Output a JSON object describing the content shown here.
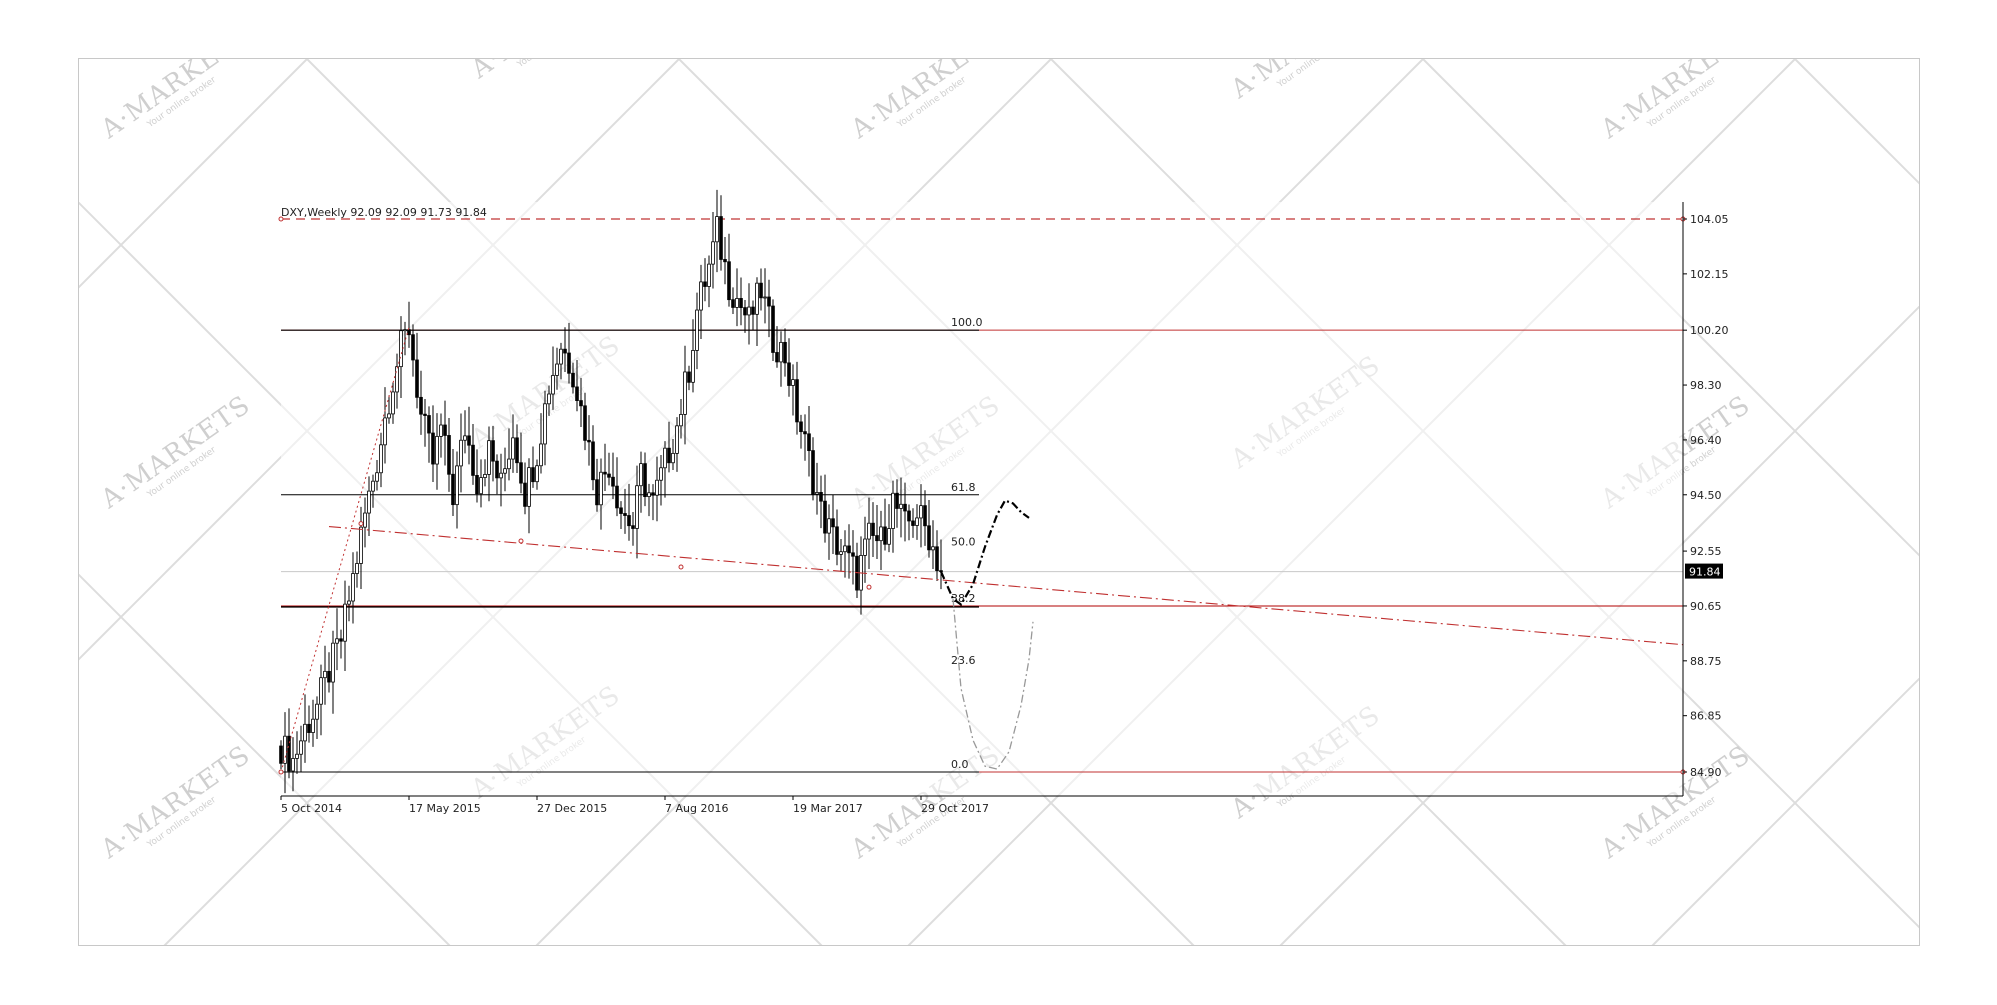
{
  "chart_data": {
    "type": "candlestick",
    "title": "DXY,Weekly  92.09 92.09 91.73 91.84",
    "symbol": "DXY,Weekly",
    "last_price": "91.84",
    "y_ticks": [
      "104.05",
      "102.15",
      "100.20",
      "98.30",
      "96.40",
      "94.50",
      "92.55",
      "90.65",
      "88.75",
      "86.85",
      "84.90"
    ],
    "y_tick_values": [
      104.05,
      102.15,
      100.2,
      98.3,
      96.4,
      94.5,
      92.55,
      90.65,
      88.75,
      86.85,
      84.9
    ],
    "ylim": [
      84.2,
      104.8
    ],
    "x_ticks": [
      "5 Oct 2014",
      "17 May 2015",
      "27 Dec 2015",
      "7 Aug 2016",
      "19 Mar 2017",
      "29 Oct 2017"
    ],
    "x_tick_index": [
      0,
      32,
      64,
      96,
      128,
      160
    ],
    "price_path": [
      [
        0,
        85.8
      ],
      [
        3,
        85.3
      ],
      [
        6,
        86.4
      ],
      [
        9,
        87.2
      ],
      [
        12,
        88.4
      ],
      [
        15,
        89.5
      ],
      [
        18,
        91.6
      ],
      [
        21,
        93.8
      ],
      [
        24,
        95.7
      ],
      [
        27,
        97.9
      ],
      [
        30,
        99.6
      ],
      [
        32,
        100.3
      ],
      [
        35,
        97.2
      ],
      [
        38,
        95.6
      ],
      [
        40,
        96.8
      ],
      [
        43,
        94.5
      ],
      [
        46,
        96.8
      ],
      [
        49,
        95.0
      ],
      [
        52,
        96.0
      ],
      [
        55,
        94.8
      ],
      [
        58,
        96.7
      ],
      [
        61,
        94.6
      ],
      [
        64,
        96.0
      ],
      [
        67,
        98.3
      ],
      [
        70,
        99.7
      ],
      [
        73,
        98.8
      ],
      [
        76,
        96.8
      ],
      [
        79,
        94.7
      ],
      [
        82,
        95.6
      ],
      [
        85,
        94.0
      ],
      [
        88,
        93.4
      ],
      [
        90,
        95.2
      ],
      [
        93,
        94.2
      ],
      [
        96,
        95.6
      ],
      [
        99,
        96.9
      ],
      [
        102,
        98.9
      ],
      [
        104,
        100.9
      ],
      [
        107,
        102.4
      ],
      [
        109,
        103.6
      ],
      [
        112,
        101.8
      ],
      [
        114,
        101.3
      ],
      [
        117,
        100.5
      ],
      [
        120,
        101.6
      ],
      [
        123,
        99.9
      ],
      [
        126,
        99.3
      ],
      [
        129,
        97.3
      ],
      [
        132,
        95.7
      ],
      [
        135,
        93.9
      ],
      [
        138,
        93.0
      ],
      [
        141,
        92.4
      ],
      [
        144,
        91.7
      ],
      [
        147,
        93.0
      ],
      [
        150,
        92.9
      ],
      [
        153,
        94.3
      ],
      [
        156,
        93.4
      ],
      [
        159,
        93.9
      ],
      [
        162,
        93.1
      ],
      [
        165,
        91.84
      ]
    ],
    "horizontal_levels": [
      104.05,
      100.2,
      94.5,
      90.65,
      84.9
    ],
    "fibonacci": [
      {
        "label": "100.0",
        "value": 100.2
      },
      {
        "label": "61.8",
        "value": 94.5
      },
      {
        "label": "50.0",
        "value": 92.6
      },
      {
        "label": "38.2",
        "value": 90.65
      },
      {
        "label": "23.6",
        "value": 88.5
      },
      {
        "label": "0.0",
        "value": 84.9
      }
    ],
    "trendline": [
      [
        12,
        93.4
      ],
      [
        194,
        91.2
      ]
    ],
    "support_line": [
      [
        0,
        84.9
      ],
      [
        32,
        100.3
      ]
    ],
    "projection_up": [
      [
        165,
        91.84
      ],
      [
        168,
        90.9
      ],
      [
        170,
        90.7
      ],
      [
        173,
        91.4
      ],
      [
        176,
        92.7
      ],
      [
        179,
        93.8
      ],
      [
        181,
        94.3
      ],
      [
        183,
        94.2
      ],
      [
        185,
        93.9
      ],
      [
        187,
        93.7
      ]
    ],
    "projection_down": [
      [
        168,
        90.9
      ],
      [
        170,
        87.8
      ],
      [
        173,
        86.0
      ],
      [
        176,
        85.1
      ],
      [
        179,
        85.0
      ],
      [
        182,
        85.6
      ],
      [
        185,
        87.2
      ],
      [
        187,
        88.8
      ],
      [
        188,
        90.1
      ]
    ],
    "grid": false
  },
  "watermark": {
    "brand": "A·MARKETS",
    "tagline": "Your online broker"
  }
}
